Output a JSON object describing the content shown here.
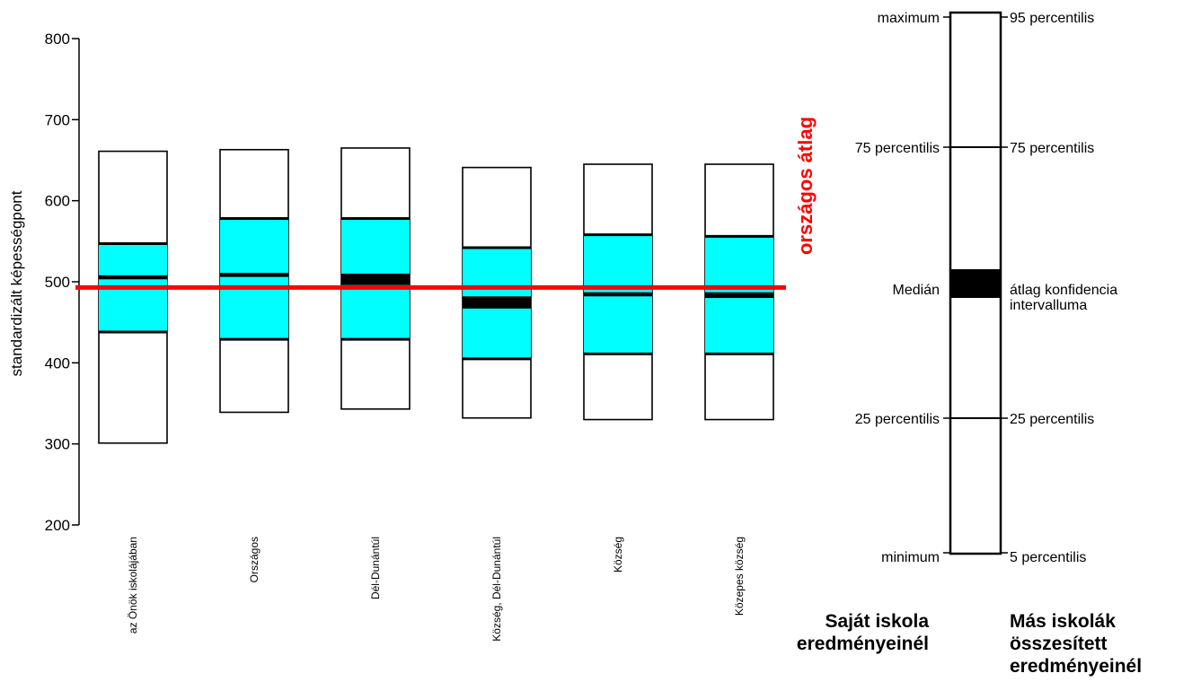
{
  "chart_data": {
    "type": "box",
    "ylabel": "standardizált képességpont",
    "ylim": [
      200,
      800
    ],
    "yticks": [
      200,
      300,
      400,
      500,
      600,
      700,
      800
    ],
    "average_line": {
      "label": "országos átlag",
      "value": 493,
      "color": "#ff0000"
    },
    "categories": [
      "az Önök iskolájában",
      "Országos",
      "Dél-Dunántúl",
      "Község, Dél-Dunántúl",
      "Község",
      "Közepes község"
    ],
    "boxes": [
      {
        "category": "az Önök iskolájában",
        "p5": 301,
        "p25": 438,
        "ci_low": 503,
        "ci_high": 508,
        "p75": 547,
        "p95": 661
      },
      {
        "category": "Országos",
        "p5": 339,
        "p25": 429,
        "ci_low": 506,
        "ci_high": 511,
        "p75": 578,
        "p95": 663
      },
      {
        "category": "Dél-Dunántúl",
        "p5": 343,
        "p25": 429,
        "ci_low": 496,
        "ci_high": 510,
        "p75": 578,
        "p95": 665
      },
      {
        "category": "Község, Dél-Dunántúl",
        "p5": 332,
        "p25": 405,
        "ci_low": 467,
        "ci_high": 482,
        "p75": 542,
        "p95": 641
      },
      {
        "category": "Község",
        "p5": 330,
        "p25": 411,
        "ci_low": 482,
        "ci_high": 487,
        "p75": 558,
        "p95": 645
      },
      {
        "category": "Közepes község",
        "p5": 330,
        "p25": 411,
        "ci_low": 480,
        "ci_high": 487,
        "p75": 556,
        "p95": 645
      }
    ],
    "colors": {
      "iqr_fill": "#00ffff",
      "ci_fill": "#000000",
      "outer_fill": "#ffffff"
    }
  },
  "legend": {
    "left_labels": [
      "maximum",
      "75 percentilis",
      "Medián",
      "25 percentilis",
      "minimum"
    ],
    "right_labels": [
      "95 percentilis",
      "75 percentilis",
      "átlag konfidencia",
      "intervalluma",
      "25 percentilis",
      "5 percentilis"
    ],
    "left_heading": [
      "Saját iskola",
      "eredményeinél"
    ],
    "right_heading": [
      "Más iskolák",
      "összesített",
      "eredményeinél"
    ]
  }
}
